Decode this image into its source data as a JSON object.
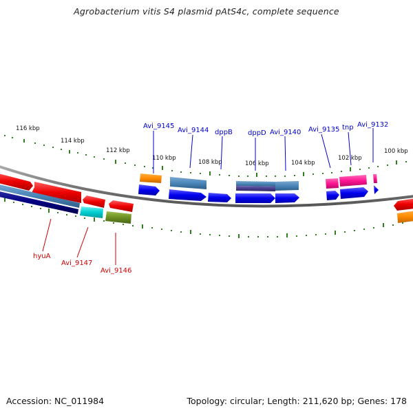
{
  "title": "Agrobacterium vitis S4 plasmid pAtS4c, complete sequence",
  "footer": {
    "accession": "Accession: NC_011984",
    "summary": "Topology: circular; Length: 211,620 bp; Genes: 178"
  },
  "scale_labels": [
    "116 kbp",
    "114 kbp",
    "112 kbp",
    "110 kbp",
    "108 kbp",
    "106 kbp",
    "104 kbp",
    "102 kbp",
    "100 kbp"
  ],
  "gene_labels_top": [
    "Avi_9145",
    "Avi_9144",
    "dppB",
    "dppD",
    "Avi_9140",
    "Avi_9135",
    "tnp",
    "Avi_9132"
  ],
  "gene_labels_bottom": [
    "hyuA",
    "Avi_9147",
    "Avi_9146"
  ],
  "colors": {
    "backbone": "#808080",
    "tick": "#2e7d1e",
    "label_blue": "#0000cc",
    "label_red": "#cc0000",
    "cds_blue": "#0000ee",
    "steelblue": "#4a86b8",
    "red": "#ee0000",
    "orange": "#ff8c00",
    "magenta": "#ff1493",
    "cyan": "#00cdd0",
    "olive": "#6b8e23",
    "navy": "#000080",
    "slate": "#483d8b"
  }
}
